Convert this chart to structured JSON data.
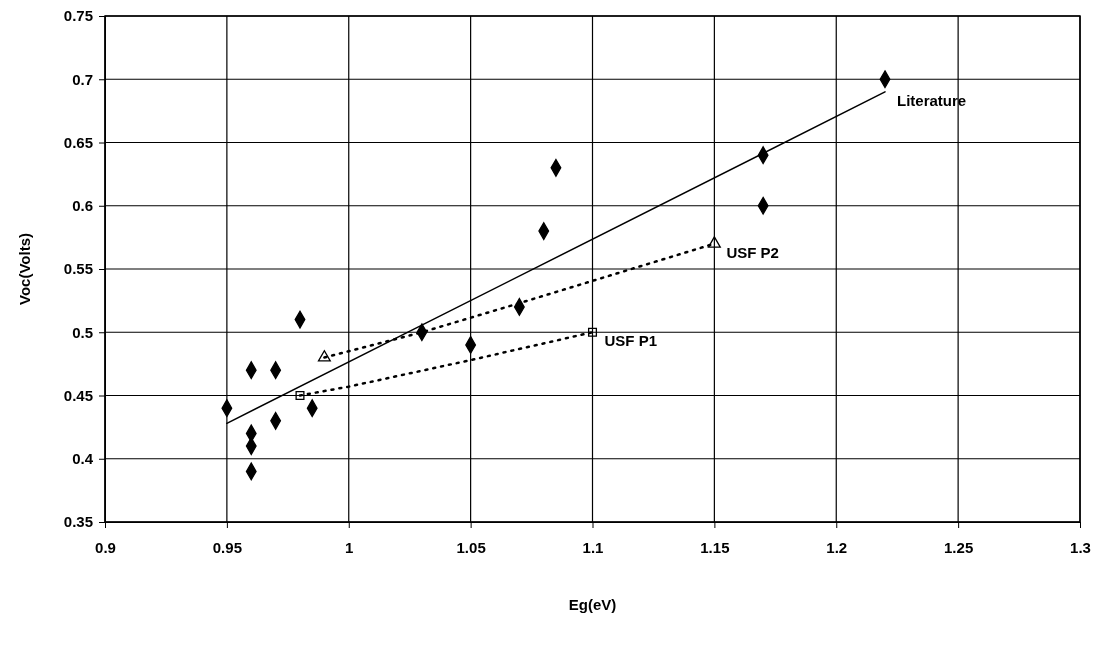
{
  "chart_data": {
    "type": "scatter",
    "xlabel": "Eg(eV)",
    "ylabel": "Voc(Volts)",
    "xlim": [
      0.9,
      1.3
    ],
    "xticks": [
      0.9,
      0.95,
      1,
      1.05,
      1.1,
      1.15,
      1.2,
      1.25,
      1.3
    ],
    "ylim": [
      0.35,
      0.75
    ],
    "yticks": [
      0.35,
      0.4,
      0.45,
      0.5,
      0.55,
      0.6,
      0.65,
      0.7,
      0.75
    ],
    "grid": true,
    "legend": false,
    "series": [
      {
        "marker": "diamond",
        "color": "#000000",
        "x": [
          0.95,
          0.96,
          0.96,
          0.96,
          0.96,
          0.97,
          0.97,
          0.98,
          0.985,
          1.03,
          1.05,
          1.07,
          1.08,
          1.085,
          1.17,
          1.17,
          1.22
        ],
        "values": [
          0.44,
          0.47,
          0.42,
          0.41,
          0.39,
          0.47,
          0.43,
          0.51,
          0.44,
          0.5,
          0.49,
          0.52,
          0.58,
          0.63,
          0.64,
          0.6,
          0.7
        ]
      },
      {
        "type": "line",
        "name": "Literature",
        "line_style": "solid",
        "marker": "none",
        "color": "#000000",
        "x": [
          0.95,
          1.22
        ],
        "values": [
          0.428,
          0.69
        ]
      },
      {
        "type": "line",
        "name": "USF P1",
        "line_style": "dotted",
        "marker": "none",
        "color": "#000000",
        "x": [
          0.98,
          1.0,
          1.05,
          1.1
        ],
        "values": [
          0.45,
          0.457,
          0.478,
          0.5
        ]
      },
      {
        "type": "line",
        "name": "USF P2",
        "line_style": "dotted",
        "marker": "none",
        "color": "#000000",
        "x": [
          0.99,
          1.03,
          1.07,
          1.15
        ],
        "values": [
          0.48,
          0.5,
          0.523,
          0.57
        ]
      },
      {
        "marker": "square",
        "color": "#000000",
        "x": [
          0.98,
          1.1
        ],
        "values": [
          0.45,
          0.5
        ]
      },
      {
        "marker": "triangle",
        "color": "#000000",
        "x": [
          0.99,
          1.15
        ],
        "values": [
          0.48,
          0.57
        ]
      }
    ]
  }
}
